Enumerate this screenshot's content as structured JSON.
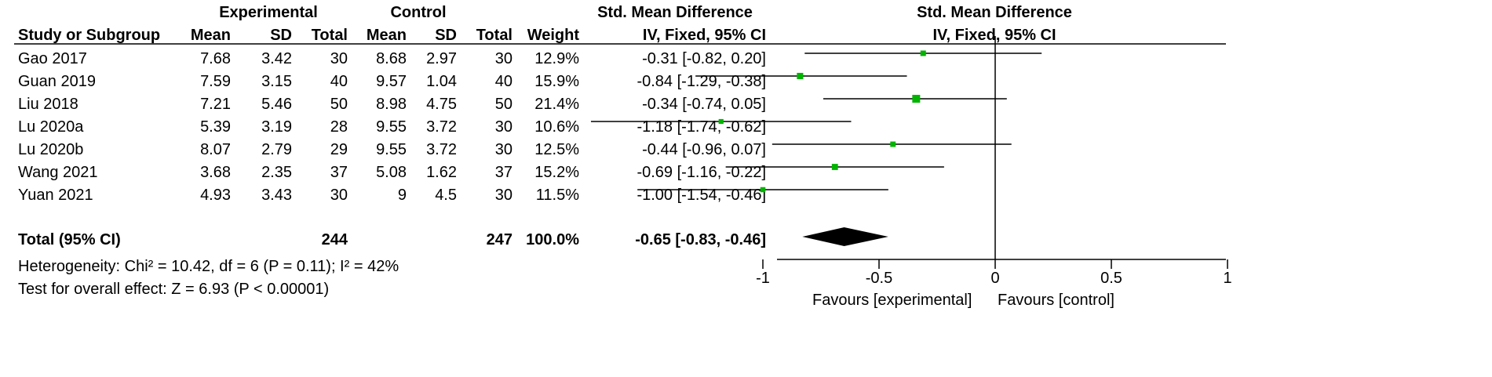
{
  "headers": {
    "group_experimental": "Experimental",
    "group_control": "Control",
    "smd_table": "Std. Mean Difference",
    "smd_plot": "Std. Mean Difference",
    "study": "Study or Subgroup",
    "mean": "Mean",
    "sd": "SD",
    "total": "Total",
    "weight": "Weight",
    "method_table": "IV, Fixed, 95% CI",
    "method_plot": "IV, Fixed, 95% CI"
  },
  "studies": [
    {
      "name": "Gao 2017",
      "e_mean": "7.68",
      "e_sd": "3.42",
      "e_total": "30",
      "c_mean": "8.68",
      "c_sd": "2.97",
      "c_total": "30",
      "weight": "12.9%",
      "ci_text": "-0.31 [-0.82, 0.20]"
    },
    {
      "name": "Guan 2019",
      "e_mean": "7.59",
      "e_sd": "3.15",
      "e_total": "40",
      "c_mean": "9.57",
      "c_sd": "1.04",
      "c_total": "40",
      "weight": "15.9%",
      "ci_text": "-0.84 [-1.29, -0.38]"
    },
    {
      "name": "Liu 2018",
      "e_mean": "7.21",
      "e_sd": "5.46",
      "e_total": "50",
      "c_mean": "8.98",
      "c_sd": "4.75",
      "c_total": "50",
      "weight": "21.4%",
      "ci_text": "-0.34 [-0.74, 0.05]"
    },
    {
      "name": "Lu 2020a",
      "e_mean": "5.39",
      "e_sd": "3.19",
      "e_total": "28",
      "c_mean": "9.55",
      "c_sd": "3.72",
      "c_total": "30",
      "weight": "10.6%",
      "ci_text": "-1.18 [-1.74, -0.62]"
    },
    {
      "name": "Lu 2020b",
      "e_mean": "8.07",
      "e_sd": "2.79",
      "e_total": "29",
      "c_mean": "9.55",
      "c_sd": "3.72",
      "c_total": "30",
      "weight": "12.5%",
      "ci_text": "-0.44 [-0.96, 0.07]"
    },
    {
      "name": "Wang 2021",
      "e_mean": "3.68",
      "e_sd": "2.35",
      "e_total": "37",
      "c_mean": "5.08",
      "c_sd": "1.62",
      "c_total": "37",
      "weight": "15.2%",
      "ci_text": "-0.69 [-1.16, -0.22]"
    },
    {
      "name": "Yuan 2021",
      "e_mean": "4.93",
      "e_sd": "3.43",
      "e_total": "30",
      "c_mean": "9",
      "c_sd": "4.5",
      "c_total": "30",
      "weight": "11.5%",
      "ci_text": "-1.00 [-1.54, -0.46]"
    }
  ],
  "total": {
    "label": "Total (95% CI)",
    "e_total": "244",
    "c_total": "247",
    "weight": "100.0%",
    "ci_text": "-0.65 [-0.83, -0.46]"
  },
  "heterogeneity": "Heterogeneity: Chi² = 10.42, df = 6 (P = 0.11); I² = 42%",
  "overall_effect": "Test for overall effect: Z = 6.93 (P < 0.00001)",
  "favours_left": "Favours [experimental]",
  "favours_right": "Favours [control]",
  "colors": {
    "marker": "#00b400",
    "line": "#000000"
  },
  "chart_data": {
    "type": "forest",
    "x_ticks": [
      "-1",
      "-0.5",
      "0",
      "0.5",
      "1"
    ],
    "xlim": [
      -1.75,
      1.0
    ],
    "points": [
      {
        "study": "Gao 2017",
        "est": -0.31,
        "lo": -0.82,
        "hi": 0.2,
        "weight": 12.9
      },
      {
        "study": "Guan 2019",
        "est": -0.84,
        "lo": -1.29,
        "hi": -0.38,
        "weight": 15.9
      },
      {
        "study": "Liu 2018",
        "est": -0.34,
        "lo": -0.74,
        "hi": 0.05,
        "weight": 21.4
      },
      {
        "study": "Lu 2020a",
        "est": -1.18,
        "lo": -1.74,
        "hi": -0.62,
        "weight": 10.6
      },
      {
        "study": "Lu 2020b",
        "est": -0.44,
        "lo": -0.96,
        "hi": 0.07,
        "weight": 12.5
      },
      {
        "study": "Wang 2021",
        "est": -0.69,
        "lo": -1.16,
        "hi": -0.22,
        "weight": 15.2
      },
      {
        "study": "Yuan 2021",
        "est": -1.0,
        "lo": -1.54,
        "hi": -0.46,
        "weight": 11.5
      }
    ],
    "pooled": {
      "est": -0.65,
      "lo": -0.83,
      "hi": -0.46
    }
  }
}
